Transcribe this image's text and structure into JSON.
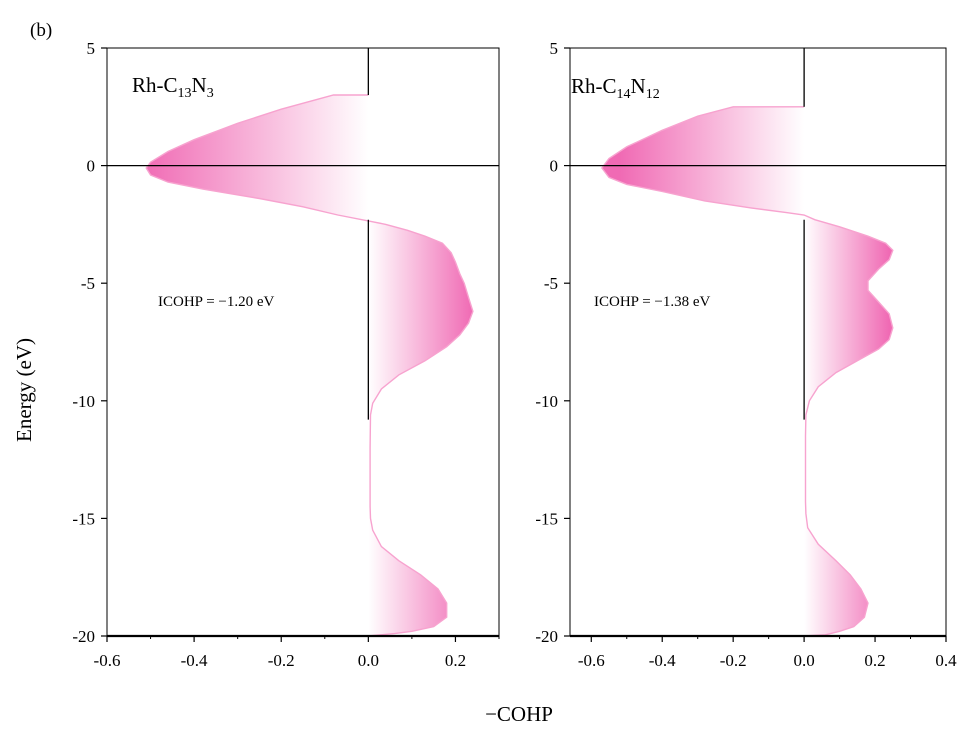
{
  "figure": {
    "panel_label": "(b)",
    "ylabel": "Energy (eV)",
    "xlabel": "−COHP"
  },
  "chart_data": [
    {
      "type": "area",
      "title": "Rh-C13N3",
      "title_parts": {
        "base": "Rh-C",
        "sub1": "13",
        "mid": "N",
        "sub2": "3"
      },
      "annotation": "ICOHP = −1.20 eV",
      "xlabel": "−COHP",
      "ylabel": "Energy (eV)",
      "xlim": [
        -0.6,
        0.3
      ],
      "ylim": [
        -20,
        5
      ],
      "xticks": [
        -0.6,
        -0.4,
        -0.2,
        0.0,
        0.2
      ],
      "xtick_labels": [
        "-0.6",
        "-0.4",
        "-0.2",
        "0.0",
        "0.2"
      ],
      "yticks": [
        5,
        0,
        -5,
        -10,
        -15,
        -20
      ],
      "ytick_labels": [
        "5",
        "0",
        "-5",
        "-10",
        "-15",
        "-20"
      ],
      "grid": false,
      "fill_color": "#f06ab4",
      "line_color": "#f7a3cf",
      "series": [
        {
          "x": [
            0,
            -0.08,
            -0.12,
            -0.2,
            -0.3,
            -0.4,
            -0.46,
            -0.5,
            -0.51,
            -0.5,
            -0.46,
            -0.38,
            -0.25,
            -0.15,
            -0.07,
            0,
            0.04,
            0.09,
            0.13,
            0.17,
            0.19,
            0.2,
            0.21,
            0.22,
            0.23,
            0.24,
            0.23,
            0.21,
            0.18,
            0.13,
            0.07,
            0.03,
            0.01,
            0.005,
            0.004,
            0.004,
            0.004,
            0.005,
            0.01,
            0.03,
            0.07,
            0.12,
            0.16,
            0.18,
            0.18,
            0.15,
            0.1,
            0.06,
            0
          ],
          "y": [
            3.0,
            3.0,
            2.8,
            2.4,
            1.8,
            1.1,
            0.6,
            0.15,
            -0.1,
            -0.4,
            -0.7,
            -1.0,
            -1.4,
            -1.75,
            -2.1,
            -2.35,
            -2.5,
            -2.75,
            -3.0,
            -3.3,
            -3.7,
            -4.1,
            -4.6,
            -5.0,
            -5.6,
            -6.2,
            -6.7,
            -7.2,
            -7.7,
            -8.3,
            -8.9,
            -9.5,
            -10.1,
            -10.6,
            -12.0,
            -13.5,
            -14.5,
            -15.0,
            -15.5,
            -16.2,
            -16.8,
            -17.4,
            -18.0,
            -18.6,
            -19.2,
            -19.6,
            -19.8,
            -19.9,
            -20.0
          ]
        }
      ]
    },
    {
      "type": "area",
      "title": "Rh-C14N12",
      "title_parts": {
        "base": "Rh-C",
        "sub1": "14",
        "mid": "N",
        "sub2": "12"
      },
      "annotation": "ICOHP = −1.38 eV",
      "xlabel": "−COHP",
      "ylabel": "Energy (eV)",
      "xlim": [
        -0.66,
        0.4
      ],
      "ylim": [
        -20,
        5
      ],
      "xticks": [
        -0.6,
        -0.4,
        -0.2,
        0.0,
        0.2,
        0.4
      ],
      "xtick_labels": [
        "-0.6",
        "-0.4",
        "-0.2",
        "0.0",
        "0.2",
        "0.4"
      ],
      "yticks": [
        5,
        0,
        -5,
        -10,
        -15,
        -20
      ],
      "ytick_labels": [
        "5",
        "0",
        "-5",
        "-10",
        "-15",
        "-20"
      ],
      "grid": false,
      "fill_color": "#f06ab4",
      "line_color": "#f7a3cf",
      "series": [
        {
          "x": [
            0,
            -0.2,
            -0.3,
            -0.4,
            -0.5,
            -0.55,
            -0.57,
            -0.55,
            -0.5,
            -0.4,
            -0.28,
            -0.15,
            -0.05,
            0,
            0.03,
            0.1,
            0.18,
            0.23,
            0.25,
            0.24,
            0.21,
            0.18,
            0.18,
            0.21,
            0.24,
            0.25,
            0.24,
            0.21,
            0.15,
            0.09,
            0.04,
            0.015,
            0.005,
            0.004,
            0.004,
            0.004,
            0.005,
            0.01,
            0.04,
            0.09,
            0.13,
            0.16,
            0.18,
            0.17,
            0.14,
            0.1,
            0.06,
            0
          ],
          "y": [
            2.5,
            2.5,
            2.1,
            1.5,
            0.8,
            0.3,
            -0.1,
            -0.5,
            -0.8,
            -1.1,
            -1.5,
            -1.8,
            -2.0,
            -2.1,
            -2.3,
            -2.6,
            -3.0,
            -3.3,
            -3.6,
            -4.0,
            -4.4,
            -4.9,
            -5.3,
            -5.8,
            -6.3,
            -6.9,
            -7.4,
            -7.8,
            -8.3,
            -8.8,
            -9.4,
            -10.0,
            -10.6,
            -11.5,
            -13.0,
            -14.3,
            -14.8,
            -15.4,
            -16.1,
            -16.8,
            -17.4,
            -18.0,
            -18.6,
            -19.2,
            -19.6,
            -19.8,
            -19.95,
            -20.0
          ]
        }
      ]
    }
  ]
}
